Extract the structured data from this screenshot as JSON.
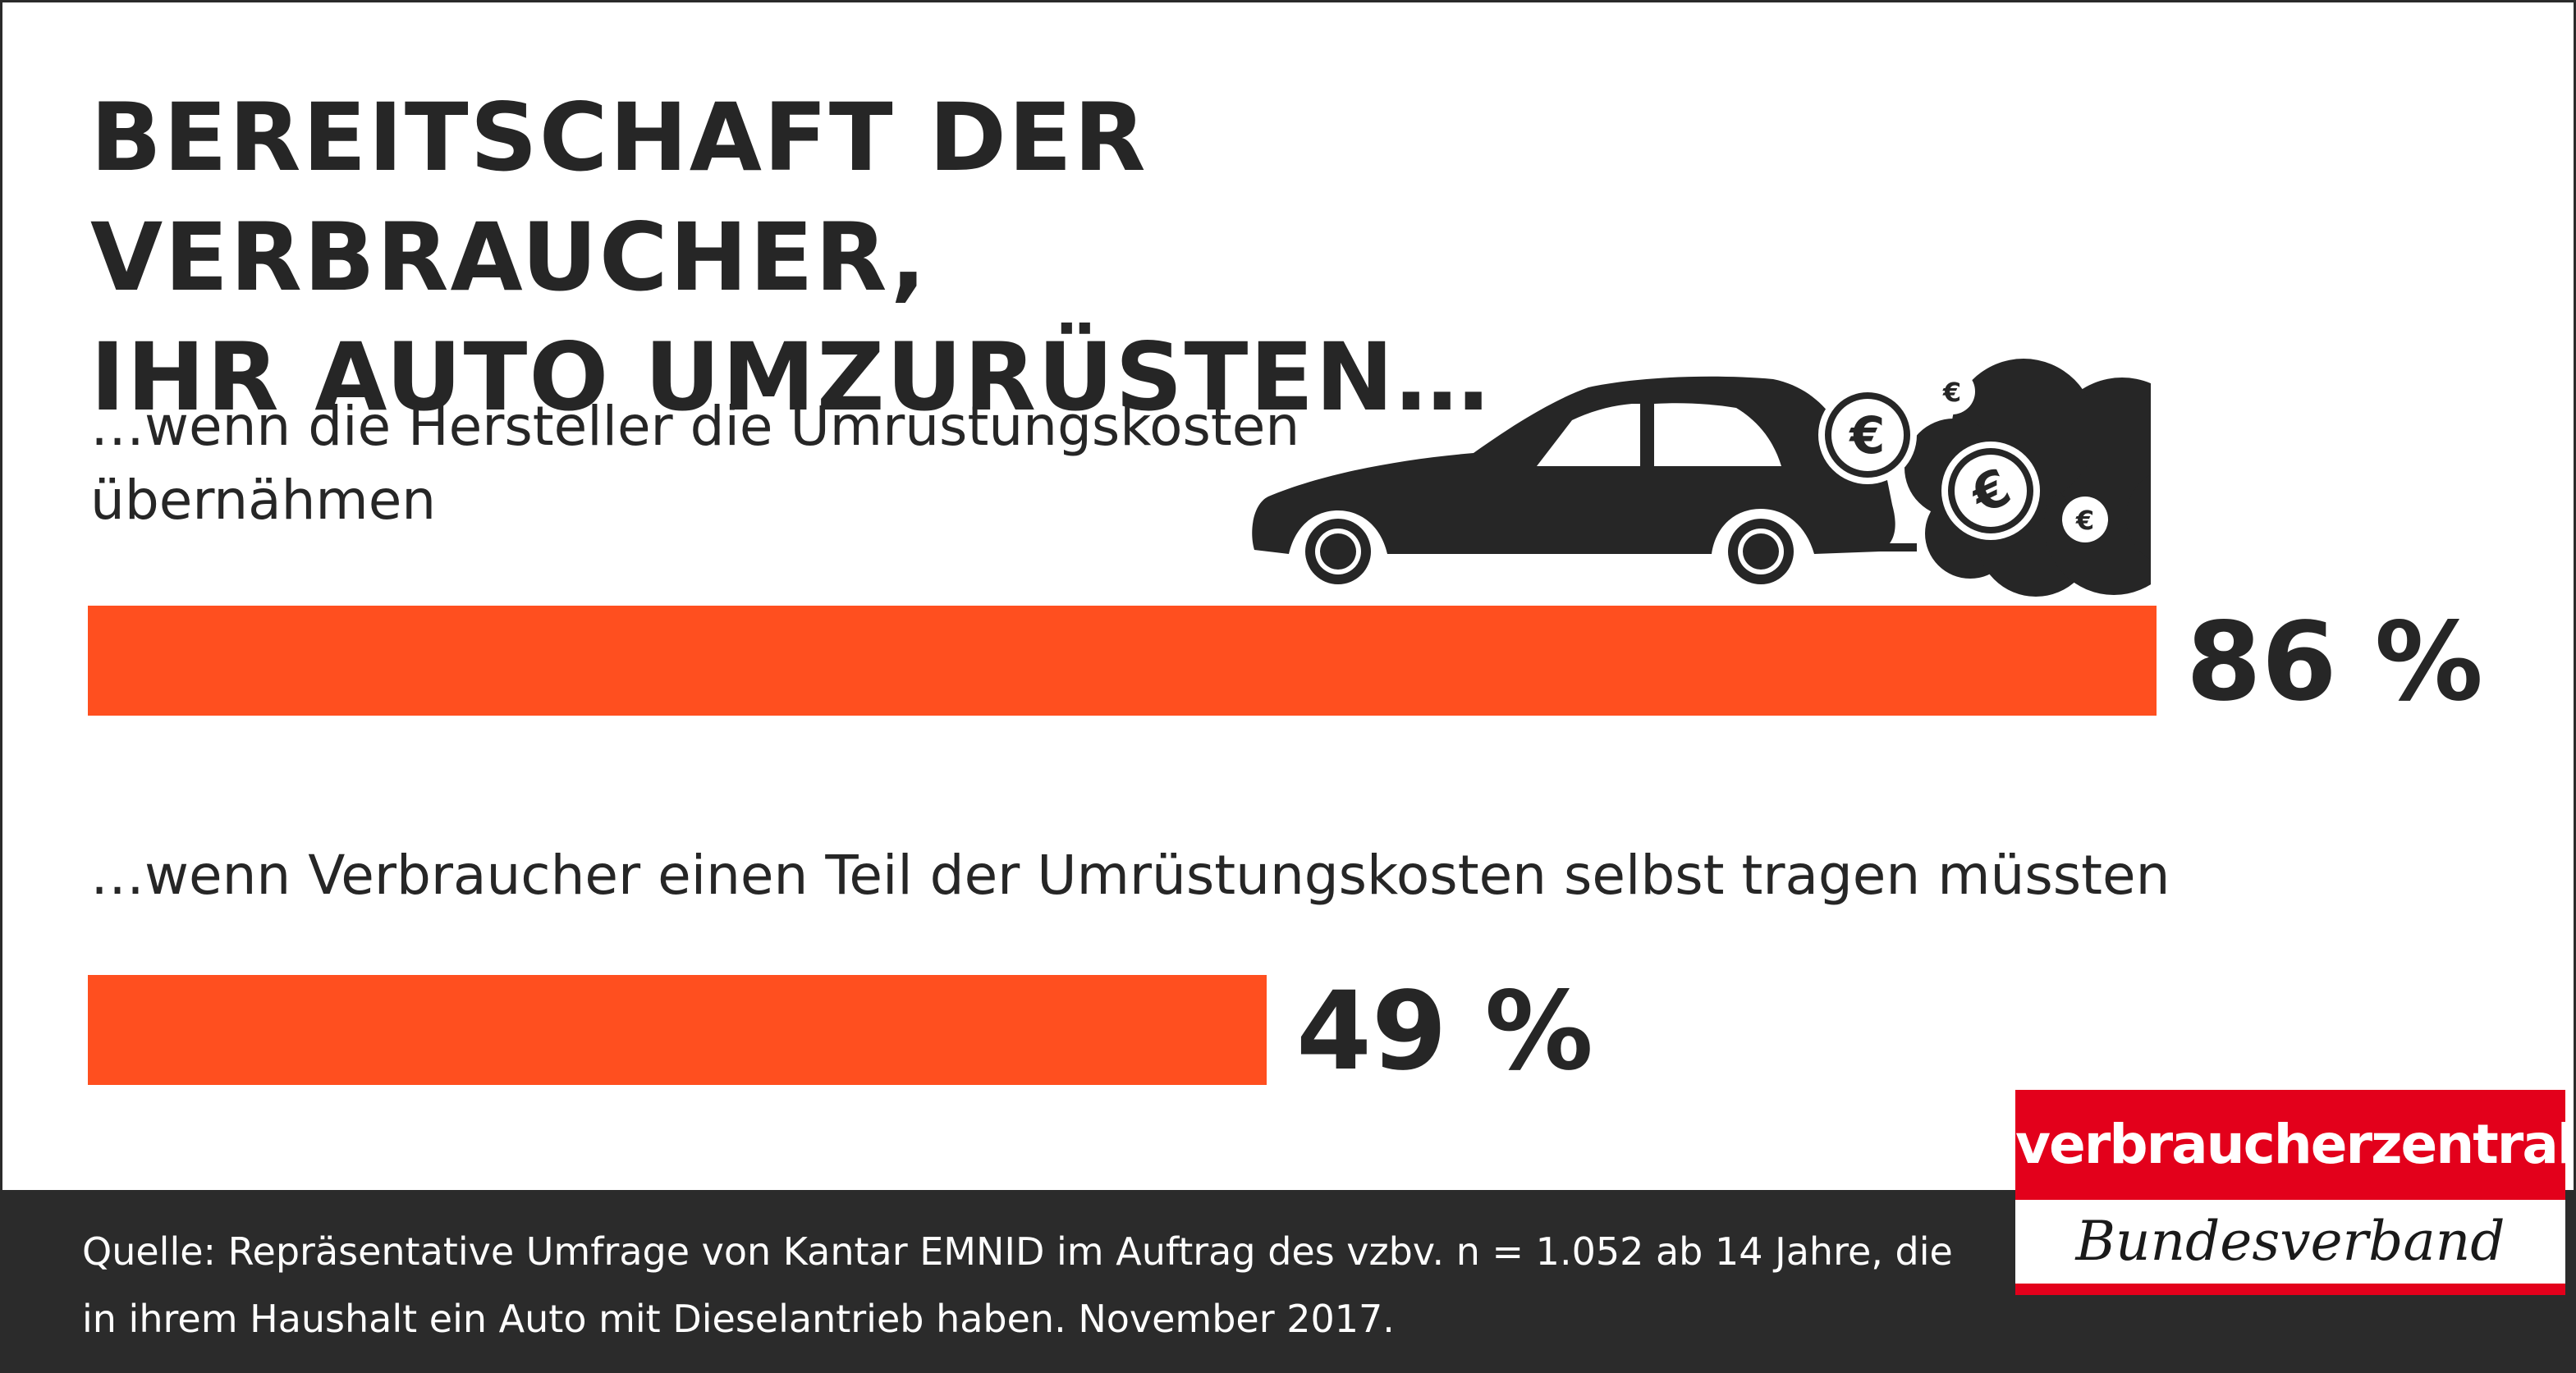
{
  "chart_data": {
    "type": "bar",
    "orientation": "horizontal",
    "title": "BEREITSCHAFT DER VERBRAUCHER, IHR AUTO UMZURÜSTEN…",
    "title_lines": [
      "BEREITSCHAFT DER VERBRAUCHER,",
      "IHR AUTO UMZURÜSTEN…"
    ],
    "categories": [
      "…wenn die Hersteller die Umrüstungskosten übernähmen",
      "…wenn Verbraucher einen Teil der Umrüstungskosten selbst tragen müssten"
    ],
    "category_lines": [
      [
        "…wenn die Hersteller die Umrüstungskosten",
        "übernähmen"
      ],
      [
        "…wenn Verbraucher einen Teil der Umrüstungskosten selbst tragen müssten"
      ]
    ],
    "values": [
      86,
      49
    ],
    "value_labels": [
      "86 %",
      "49 %"
    ],
    "unit": "%",
    "xlim": [
      0,
      100
    ],
    "bar_color": "#ff4f1f",
    "grid": false,
    "legend": "none"
  },
  "illustration": {
    "car_icon": "car-icon",
    "cloud_icon": "exhaust-cloud-icon",
    "coin_icon": "euro-coin-icon",
    "coin_symbol": "€"
  },
  "footer": {
    "source_lines": [
      "Quelle: Repräsentative Umfrage von Kantar EMNID im Auftrag des vzbv. n = 1.052 ab 14 Jahre, die",
      "in ihrem Haushalt ein Auto mit Dieselantrieb haben. November 2017."
    ],
    "background": "#2b2b2b"
  },
  "logo": {
    "top_text": "verbraucherzentrale",
    "bottom_text": "Bundesverband",
    "color": "#e3001b"
  }
}
